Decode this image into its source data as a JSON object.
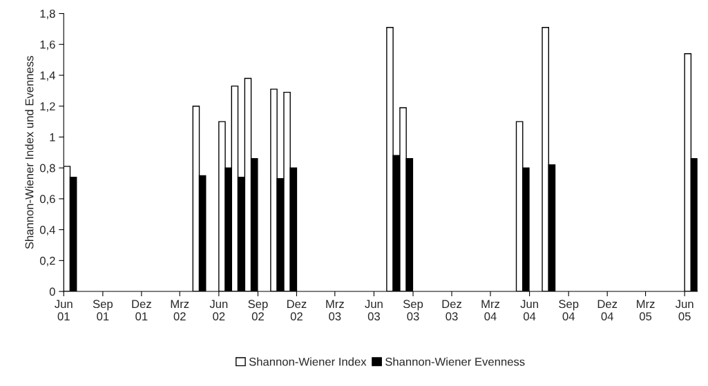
{
  "chart_data": {
    "type": "bar",
    "ylabel": "Shannon-Wiener Index und Evenness",
    "x": [
      "2001-06-16",
      "2002-04-16",
      "2002-06-16",
      "2002-07-16",
      "2002-08-16",
      "2002-10-16",
      "2002-11-16",
      "2003-07-16",
      "2003-08-16",
      "2004-05-16",
      "2004-07-16",
      "2005-06-16"
    ],
    "series": [
      {
        "name": "Shannon-Wiener Index",
        "color": "#ffffff",
        "values": [
          0.81,
          1.2,
          1.1,
          1.33,
          1.38,
          1.31,
          1.29,
          1.71,
          1.19,
          1.1,
          1.71,
          1.54
        ]
      },
      {
        "name": "Shannon-Wiener Evenness",
        "color": "#000000",
        "values": [
          0.74,
          0.75,
          0.8,
          0.74,
          0.86,
          0.73,
          0.8,
          0.88,
          0.86,
          0.8,
          0.82,
          0.86
        ]
      }
    ],
    "xlim": [
      "2001-06",
      "2005-07"
    ],
    "xticks": [
      {
        "value": "2001-06",
        "label": "Jun\n01"
      },
      {
        "value": "2001-09",
        "label": "Sep\n01"
      },
      {
        "value": "2001-12",
        "label": "Dez\n01"
      },
      {
        "value": "2002-03",
        "label": "Mrz\n02"
      },
      {
        "value": "2002-06",
        "label": "Jun\n02"
      },
      {
        "value": "2002-09",
        "label": "Sep\n02"
      },
      {
        "value": "2002-12",
        "label": "Dez\n02"
      },
      {
        "value": "2003-03",
        "label": "Mrz\n03"
      },
      {
        "value": "2003-06",
        "label": "Jun\n03"
      },
      {
        "value": "2003-09",
        "label": "Sep\n03"
      },
      {
        "value": "2003-12",
        "label": "Dez\n03"
      },
      {
        "value": "2004-03",
        "label": "Mrz\n04"
      },
      {
        "value": "2004-06",
        "label": "Jun\n04"
      },
      {
        "value": "2004-09",
        "label": "Sep\n04"
      },
      {
        "value": "2004-12",
        "label": "Dez\n04"
      },
      {
        "value": "2005-03",
        "label": "Mrz\n05"
      },
      {
        "value": "2005-06",
        "label": "Jun\n05"
      }
    ],
    "ylim": [
      0,
      1.8
    ],
    "yticks": [
      0,
      {
        "value": 0.2,
        "label": "0,2"
      },
      {
        "value": 0.4,
        "label": "0,4"
      },
      {
        "value": 0.6,
        "label": "0,6"
      },
      {
        "value": 0.8,
        "label": "0,8"
      },
      1,
      {
        "value": 1.2,
        "label": "1,2"
      },
      {
        "value": 1.4,
        "label": "1,4"
      },
      {
        "value": 1.6,
        "label": "1,6"
      },
      {
        "value": 1.8,
        "label": "1,8"
      }
    ],
    "grid": false,
    "legend": "bottom"
  }
}
